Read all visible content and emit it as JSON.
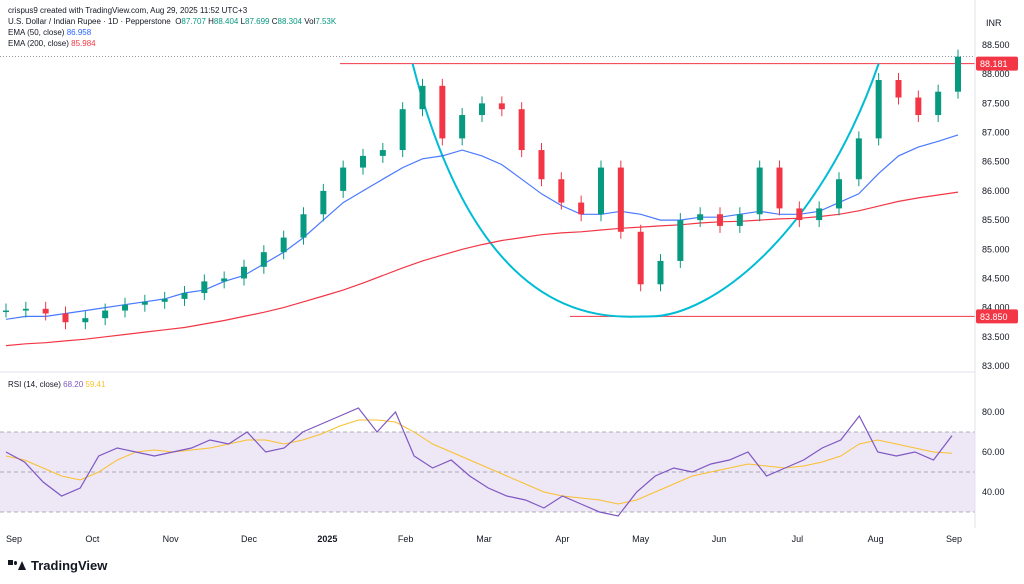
{
  "header": {
    "created_by": "crispus9 created with TradingView.com, Aug 29, 2025 11:52 UTC+3",
    "symbol": "U.S. Dollar / Indian Rupee · 1D · Pepperstone",
    "ohlc": {
      "O": "87.707",
      "H": "88.404",
      "L": "87.699",
      "C": "88.304",
      "Vol": "7.53K"
    },
    "ema50_label": "EMA (50, close)",
    "ema50_value": "86.958",
    "ema200_label": "EMA (200, close)",
    "ema200_value": "85.984",
    "currency": "INR"
  },
  "rsi": {
    "label": "RSI (14, close)",
    "value": "68.20",
    "ma_value": "59.41"
  },
  "brand": "TradingView",
  "colors": {
    "up": "#089981",
    "down": "#f23645",
    "ema50": "#2962ff",
    "ema200": "#f23645",
    "cup": "#00bcd4",
    "rsi": "#7e57c2",
    "rsi_ma": "#fbc02d",
    "rsi_band": "#ede7f6"
  },
  "chart_data": {
    "type": "line",
    "price_axis": {
      "labels": [
        "88.500",
        "88.000",
        "87.500",
        "87.000",
        "86.500",
        "86.000",
        "85.500",
        "85.000",
        "84.500",
        "84.000",
        "83.500",
        "83.000"
      ],
      "range": [
        83.0,
        88.5
      ]
    },
    "x_labels": [
      "Sep",
      "Oct",
      "Nov",
      "Dec",
      "2025",
      "Feb",
      "Mar",
      "Apr",
      "May",
      "Jun",
      "Jul",
      "Aug",
      "Sep"
    ],
    "price_levels": [
      {
        "label": "88.181",
        "value": 88.181
      },
      {
        "label": "83.850",
        "value": 83.85
      }
    ],
    "price_close": [
      [
        "Sep",
        83.95
      ],
      [
        "Sep",
        83.98
      ],
      [
        "Sep",
        83.9
      ],
      [
        "Oct",
        83.75
      ],
      [
        "Oct",
        83.82
      ],
      [
        "Oct",
        83.95
      ],
      [
        "Oct",
        84.05
      ],
      [
        "Oct",
        84.1
      ],
      [
        "Nov",
        84.15
      ],
      [
        "Nov",
        84.25
      ],
      [
        "Nov",
        84.45
      ],
      [
        "Nov",
        84.5
      ],
      [
        "Dec",
        84.7
      ],
      [
        "Dec",
        84.95
      ],
      [
        "Dec",
        85.2
      ],
      [
        "Dec",
        85.6
      ],
      [
        "2025",
        86.0
      ],
      [
        "2025",
        86.4
      ],
      [
        "2025",
        86.6
      ],
      [
        "2025",
        86.7
      ],
      [
        "Feb",
        87.4
      ],
      [
        "Feb",
        87.8
      ],
      [
        "Feb",
        86.9
      ],
      [
        "Feb",
        87.3
      ],
      [
        "Mar",
        87.5
      ],
      [
        "Mar",
        87.4
      ],
      [
        "Mar",
        86.7
      ],
      [
        "Mar",
        86.2
      ],
      [
        "Apr",
        85.8
      ],
      [
        "Apr",
        85.6
      ],
      [
        "Apr",
        86.4
      ],
      [
        "Apr",
        85.3
      ],
      [
        "May",
        84.4
      ],
      [
        "May",
        84.8
      ],
      [
        "May",
        85.5
      ],
      [
        "May",
        85.6
      ],
      [
        "Jun",
        85.4
      ],
      [
        "Jun",
        85.6
      ],
      [
        "Jun",
        86.4
      ],
      [
        "Jun",
        85.7
      ],
      [
        "Jul",
        85.5
      ],
      [
        "Jul",
        85.7
      ],
      [
        "Jul",
        86.2
      ],
      [
        "Jul",
        86.9
      ],
      [
        "Aug",
        87.9
      ],
      [
        "Aug",
        87.6
      ],
      [
        "Aug",
        87.3
      ],
      [
        "Aug",
        87.7
      ],
      [
        "Sep",
        88.3
      ]
    ],
    "series": [
      {
        "name": "EMA (50, close)",
        "values": [
          83.8,
          83.85,
          83.85,
          83.9,
          83.95,
          84.0,
          84.05,
          84.1,
          84.15,
          84.25,
          84.3,
          84.45,
          84.55,
          84.75,
          84.95,
          85.2,
          85.5,
          85.8,
          86.0,
          86.2,
          86.4,
          86.55,
          86.6,
          86.7,
          86.6,
          86.45,
          86.2,
          85.95,
          85.75,
          85.6,
          85.6,
          85.65,
          85.6,
          85.5,
          85.5,
          85.55,
          85.55,
          85.6,
          85.65,
          85.6,
          85.6,
          85.65,
          85.8,
          85.95,
          86.3,
          86.6,
          86.75,
          86.85,
          86.96
        ]
      },
      {
        "name": "EMA (200, close)",
        "values": [
          83.35,
          83.38,
          83.4,
          83.43,
          83.46,
          83.5,
          83.54,
          83.58,
          83.62,
          83.66,
          83.72,
          83.78,
          83.85,
          83.92,
          84.0,
          84.1,
          84.2,
          84.3,
          84.42,
          84.55,
          84.68,
          84.8,
          84.9,
          85.0,
          85.08,
          85.15,
          85.2,
          85.25,
          85.28,
          85.3,
          85.33,
          85.36,
          85.38,
          85.4,
          85.42,
          85.45,
          85.47,
          85.48,
          85.5,
          85.52,
          85.53,
          85.56,
          85.6,
          85.66,
          85.74,
          85.82,
          85.88,
          85.93,
          85.98
        ]
      }
    ],
    "rsi_data": {
      "axis_labels": [
        "80.00",
        "60.00",
        "40.00"
      ],
      "range": [
        26,
        90
      ],
      "bands": [
        70,
        50,
        30
      ],
      "rsi": [
        60,
        55,
        45,
        38,
        42,
        58,
        62,
        60,
        58,
        60,
        62,
        66,
        64,
        70,
        60,
        62,
        70,
        74,
        78,
        82,
        70,
        80,
        58,
        52,
        56,
        48,
        42,
        38,
        36,
        32,
        38,
        34,
        30,
        28,
        40,
        48,
        52,
        50,
        54,
        56,
        60,
        48,
        52,
        56,
        62,
        66,
        78,
        60,
        58,
        60,
        56,
        68.2
      ],
      "ma": [
        58,
        56,
        52,
        48,
        46,
        50,
        56,
        60,
        61,
        60,
        61,
        62,
        64,
        66,
        66,
        64,
        66,
        69,
        73,
        76,
        76,
        75,
        70,
        64,
        60,
        56,
        52,
        48,
        44,
        40,
        38,
        37,
        36,
        34,
        36,
        40,
        44,
        48,
        50,
        52,
        54,
        53,
        52,
        53,
        55,
        58,
        64,
        66,
        64,
        62,
        60,
        59.41
      ]
    }
  }
}
